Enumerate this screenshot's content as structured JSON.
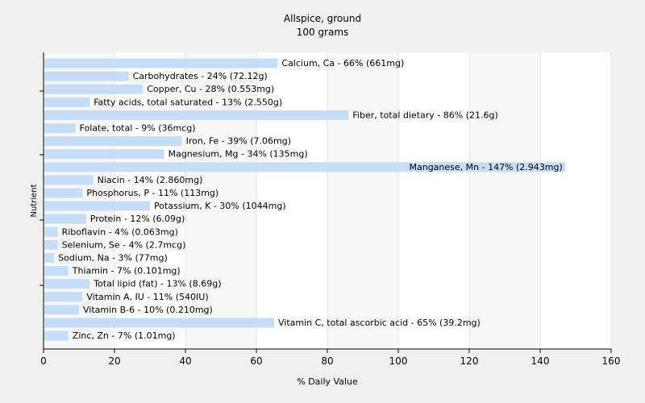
{
  "chart_data": {
    "type": "bar",
    "orientation": "horizontal",
    "title": "Allspice, ground",
    "subtitle": "100 grams",
    "xlabel": "% Daily Value",
    "ylabel": "Nutrient",
    "xlim": [
      0,
      160
    ],
    "xticks": [
      0,
      20,
      40,
      60,
      80,
      100,
      120,
      140,
      160
    ],
    "grid": "vertical",
    "bar_color": "#c6dcf7",
    "categories": [
      "Calcium, Ca",
      "Carbohydrates",
      "Copper, Cu",
      "Fatty acids, total saturated",
      "Fiber, total dietary",
      "Folate, total",
      "Iron, Fe",
      "Magnesium, Mg",
      "Manganese, Mn",
      "Niacin",
      "Phosphorus, P",
      "Potassium, K",
      "Protein",
      "Riboflavin",
      "Selenium, Se",
      "Sodium, Na",
      "Thiamin",
      "Total lipid (fat)",
      "Vitamin A, IU",
      "Vitamin B-6",
      "Vitamin C, total ascorbic acid",
      "Zinc, Zn"
    ],
    "values": [
      66,
      24,
      28,
      13,
      86,
      9,
      39,
      34,
      147,
      14,
      11,
      30,
      12,
      4,
      4,
      3,
      7,
      13,
      11,
      10,
      65,
      7
    ],
    "labels": [
      "Calcium, Ca - 66% (661mg)",
      "Carbohydrates - 24% (72.12g)",
      "Copper, Cu - 28% (0.553mg)",
      "Fatty acids, total saturated - 13% (2.550g)",
      "Fiber, total dietary - 86% (21.6g)",
      "Folate, total - 9% (36mcg)",
      "Iron, Fe - 39% (7.06mg)",
      "Magnesium, Mg - 34% (135mg)",
      "Manganese, Mn - 147% (2.943mg)",
      "Niacin - 14% (2.860mg)",
      "Phosphorus, P - 11% (113mg)",
      "Potassium, K - 30% (1044mg)",
      "Protein - 12% (6.09g)",
      "Riboflavin - 4% (0.063mg)",
      "Selenium, Se - 4% (2.7mcg)",
      "Sodium, Na - 3% (77mg)",
      "Thiamin - 7% (0.101mg)",
      "Total lipid (fat) - 13% (8.69g)",
      "Vitamin A, IU - 11% (540IU)",
      "Vitamin B-6 - 10% (0.210mg)",
      "Vitamin C, total ascorbic acid - 65% (39.2mg)",
      "Zinc, Zn - 7% (1.01mg)"
    ]
  }
}
